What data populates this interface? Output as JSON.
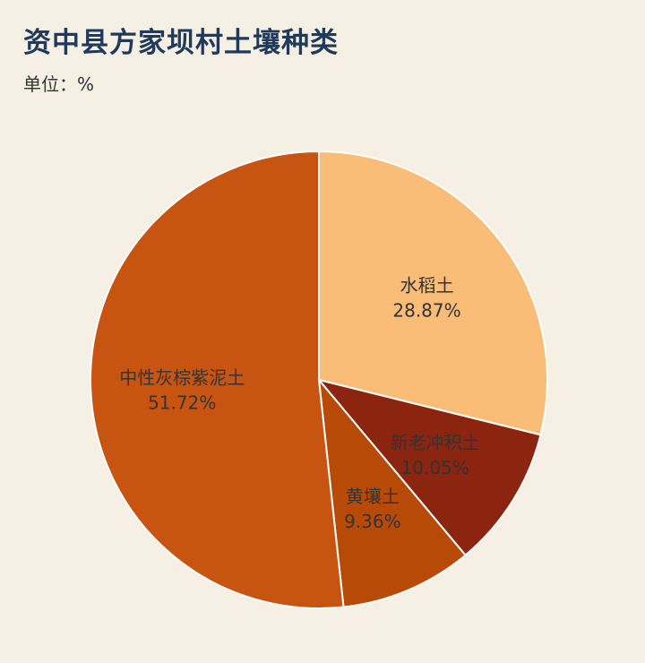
{
  "title": "资中县方家坝村土壤种类",
  "subtitle": "单位：%",
  "chart_data": {
    "type": "pie",
    "title": "资中县方家坝村土壤种类",
    "unit": "%",
    "slices": [
      {
        "label": "水稻土",
        "value": 28.87,
        "display": "28.87%",
        "color": "#f9bd77"
      },
      {
        "label": "新老冲积土",
        "value": 10.05,
        "display": "10.05%",
        "color": "#8b2510"
      },
      {
        "label": "黄壤土",
        "value": 9.36,
        "display": "9.36%",
        "color": "#b84a08"
      },
      {
        "label": "中性灰棕紫泥土",
        "value": 51.72,
        "display": "51.72%",
        "color": "#c85412"
      }
    ],
    "start_angle": "12 o'clock",
    "direction": "clockwise",
    "legend": "none"
  }
}
